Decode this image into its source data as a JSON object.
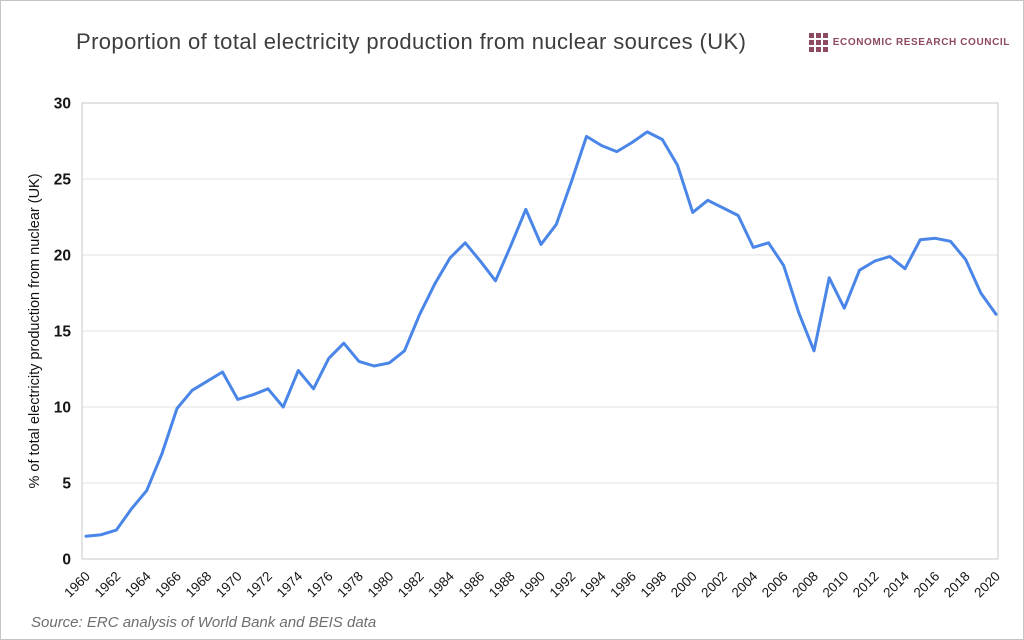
{
  "header": {
    "title": "Proportion of total electricity production from nuclear sources (UK)",
    "logo_text": "ECONOMIC RESEARCH COUNCIL"
  },
  "footer": {
    "source": "Source: ERC analysis of World Bank and BEIS data"
  },
  "colors": {
    "line": "#4a86e8",
    "logo": "#8e4a5e",
    "gridline": "#e2e2e2",
    "plot_border": "#c9c9c9",
    "tick_text": "#161616",
    "axis_title_text": "#111111"
  },
  "chart_data": {
    "type": "line",
    "title": "Proportion of total electricity production from nuclear sources (UK)",
    "xlabel": "",
    "ylabel": "% of total electricity production from nuclear (UK)",
    "legend": "none",
    "grid": "horizontal",
    "ylim": [
      0,
      30
    ],
    "yticks": [
      0,
      5,
      10,
      15,
      20,
      25,
      30
    ],
    "xtick_labels": [
      "1960",
      "1962",
      "1964",
      "1966",
      "1968",
      "1970",
      "1972",
      "1974",
      "1976",
      "1978",
      "1980",
      "1982",
      "1984",
      "1986",
      "1988",
      "1990",
      "1992",
      "1994",
      "1996",
      "1998",
      "2000",
      "2002",
      "2004",
      "2006",
      "2008",
      "2010",
      "2012",
      "2014",
      "2016",
      "2018",
      "2020"
    ],
    "x": [
      1960,
      1961,
      1962,
      1963,
      1964,
      1965,
      1966,
      1967,
      1968,
      1969,
      1970,
      1971,
      1972,
      1973,
      1974,
      1975,
      1976,
      1977,
      1978,
      1979,
      1980,
      1981,
      1982,
      1983,
      1984,
      1985,
      1986,
      1987,
      1988,
      1989,
      1990,
      1991,
      1992,
      1993,
      1994,
      1995,
      1996,
      1997,
      1998,
      1999,
      2000,
      2001,
      2002,
      2003,
      2004,
      2005,
      2006,
      2007,
      2008,
      2009,
      2010,
      2011,
      2012,
      2013,
      2014,
      2015,
      2016,
      2017,
      2018,
      2019,
      2020
    ],
    "values": [
      1.5,
      1.6,
      1.9,
      3.3,
      4.5,
      6.9,
      9.9,
      11.1,
      11.7,
      12.3,
      10.5,
      10.8,
      11.2,
      10.0,
      12.4,
      11.2,
      13.2,
      14.2,
      13.0,
      12.7,
      12.9,
      13.7,
      16.1,
      18.1,
      19.8,
      20.8,
      19.6,
      18.3,
      20.6,
      23.0,
      20.7,
      22.0,
      24.8,
      27.8,
      27.2,
      26.8,
      27.4,
      28.1,
      27.6,
      25.9,
      22.8,
      23.6,
      23.1,
      22.6,
      20.5,
      20.8,
      19.3,
      16.2,
      13.7,
      18.5,
      16.5,
      19.0,
      19.6,
      19.9,
      19.1,
      21.0,
      21.1,
      20.9,
      19.7,
      17.5,
      16.1
    ]
  }
}
